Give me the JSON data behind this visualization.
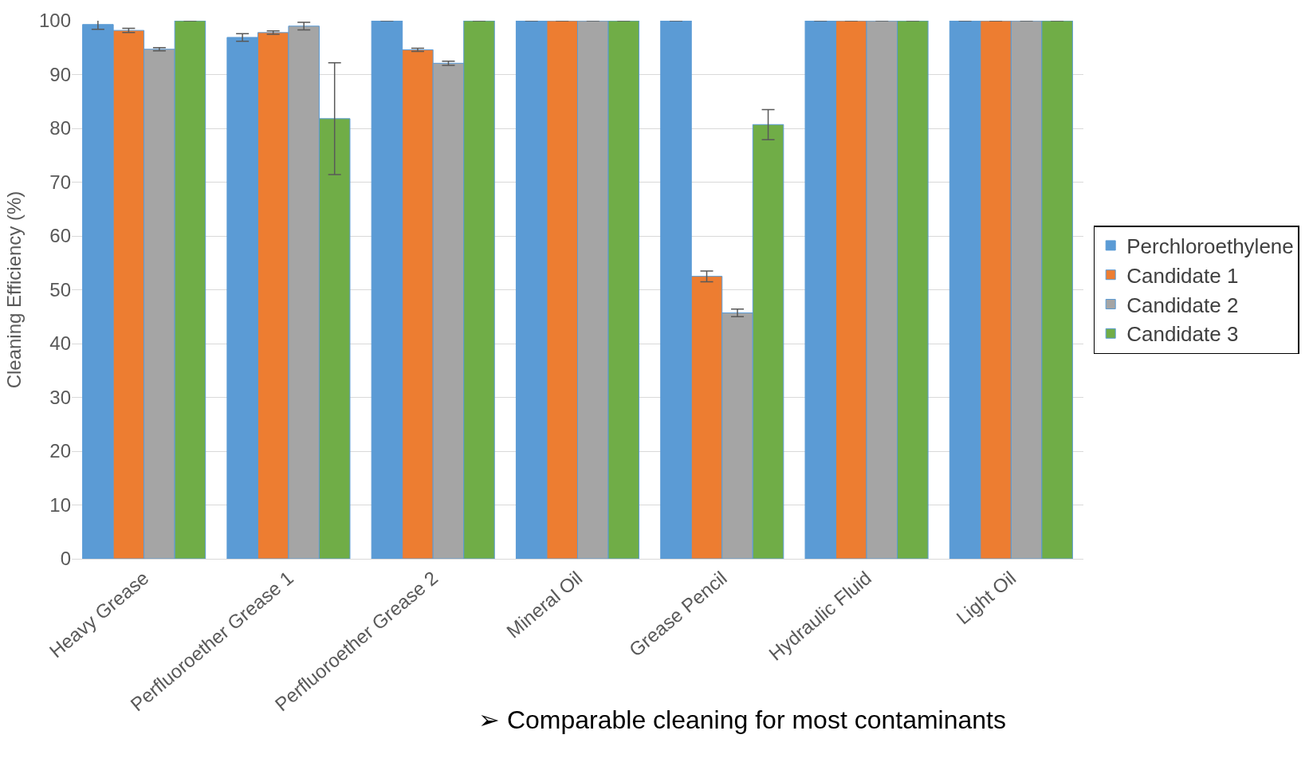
{
  "chart_data": {
    "type": "bar",
    "ylabel": "Cleaning Efficiency (%)",
    "categories": [
      "Heavy Grease",
      "Perfluoroether Grease 1",
      "Perfluoroether Grease 2",
      "Mineral Oil",
      "Grease Pencil",
      "Hydraulic Fluid",
      "Light Oil"
    ],
    "series": [
      {
        "name": "Perchloroethylene",
        "color": "#5b9bd5",
        "values": [
          99.3,
          96.9,
          100,
          100,
          100,
          100,
          100
        ],
        "errors": [
          0.9,
          0.7,
          null,
          null,
          null,
          null,
          null
        ]
      },
      {
        "name": "Candidate 1",
        "color": "#ed7d31",
        "values": [
          98.2,
          97.8,
          94.6,
          100,
          52.5,
          100,
          100
        ],
        "errors": [
          0.4,
          0.3,
          0.3,
          null,
          1.0,
          null,
          null
        ]
      },
      {
        "name": "Candidate 2",
        "color": "#a5a5a5",
        "values": [
          94.7,
          99.0,
          92.1,
          100,
          45.7,
          100,
          100
        ],
        "errors": [
          0.3,
          0.7,
          0.4,
          null,
          0.7,
          null,
          null
        ]
      },
      {
        "name": "Candidate 3",
        "color": "#70ad47",
        "values": [
          100,
          81.8,
          100,
          100,
          80.7,
          100,
          100
        ],
        "errors": [
          null,
          10.4,
          null,
          null,
          2.8,
          null,
          null
        ]
      }
    ],
    "ylim": [
      0,
      100
    ],
    "yticks": [
      0,
      10,
      20,
      30,
      40,
      50,
      60,
      70,
      80,
      90,
      100
    ],
    "grid": "y",
    "legend": "right",
    "annotations": [
      "➢ Comparable cleaning for most contaminants"
    ]
  }
}
